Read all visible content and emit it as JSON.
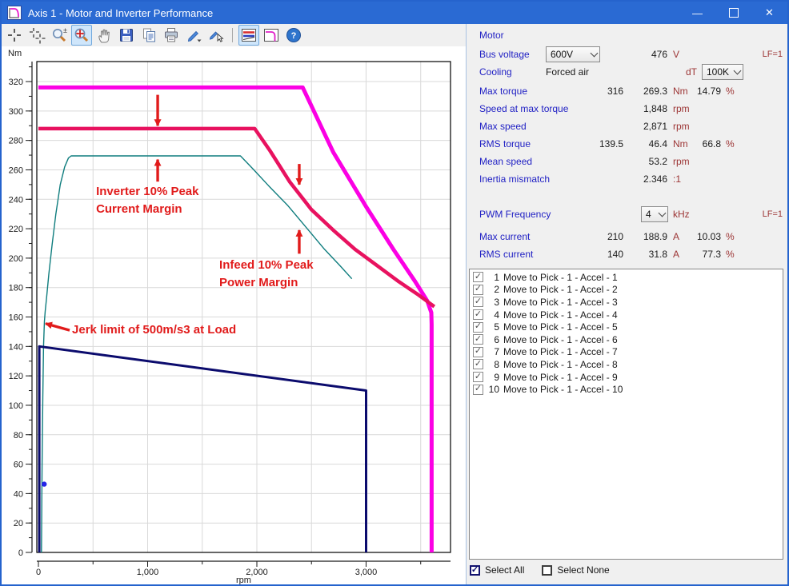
{
  "window": {
    "title": "Axis 1 - Motor and Inverter Performance"
  },
  "icons": {
    "checkmark": "✓",
    "minimize": "—",
    "close": "✕"
  },
  "toolbar": {
    "buttons": [
      {
        "icon": "crosshair",
        "active": false
      },
      {
        "icon": "crosshair-double",
        "active": false
      },
      {
        "icon": "zoom-in-out",
        "active": false
      },
      {
        "icon": "zoom-extents",
        "active": true
      },
      {
        "icon": "pan-hand",
        "active": false
      },
      {
        "icon": "save",
        "active": false
      },
      {
        "icon": "copy",
        "active": false
      },
      {
        "icon": "print",
        "active": false
      },
      {
        "icon": "pencil",
        "active": false
      },
      {
        "icon": "pencil-select",
        "active": false
      },
      {
        "icon": "chart-torque-speed",
        "active": true
      },
      {
        "icon": "chart-performance",
        "active": false
      },
      {
        "icon": "help",
        "active": false
      }
    ]
  },
  "panel": {
    "motor": {
      "header": "Motor",
      "lf_label": "LF=1",
      "bus_voltage": {
        "label": "Bus voltage",
        "combo": "600V",
        "value": "476",
        "unit": "V"
      },
      "cooling": {
        "label": "Cooling",
        "value": "Forced air",
        "dt_label": "dT",
        "dt_combo": "100K"
      },
      "max_torque": {
        "label": "Max torque",
        "rated": "316",
        "value": "269.3",
        "unit": "Nm",
        "pct": "14.79",
        "pct_unit": "%"
      },
      "speed_at_max_torque": {
        "label": "Speed at max torque",
        "value": "1,848",
        "unit": "rpm"
      },
      "max_speed": {
        "label": "Max speed",
        "value": "2,871",
        "unit": "rpm"
      },
      "rms_torque": {
        "label": "RMS torque",
        "rated": "139.5",
        "value": "46.4",
        "unit": "Nm",
        "pct": "66.8",
        "pct_unit": "%"
      },
      "mean_speed": {
        "label": "Mean speed",
        "value": "53.2",
        "unit": "rpm"
      },
      "inertia_mismatch": {
        "label": "Inertia mismatch",
        "value": "2.346",
        "unit": ":1"
      }
    },
    "inverter": {
      "lf_label": "LF=1",
      "pwm": {
        "label": "PWM Frequency",
        "combo": "4",
        "unit": "kHz"
      },
      "max_current": {
        "label": "Max current",
        "rated": "210",
        "value": "188.9",
        "unit": "A",
        "pct": "10.03",
        "pct_unit": "%"
      },
      "rms_current": {
        "label": "RMS current",
        "rated": "140",
        "value": "31.8",
        "unit": "A",
        "pct": "77.3",
        "pct_unit": "%"
      }
    }
  },
  "move_list": {
    "items": [
      {
        "num": "1",
        "label": "Move to Pick - 1 - Accel - 1",
        "checked": true
      },
      {
        "num": "2",
        "label": "Move to Pick - 1 - Accel - 2",
        "checked": true
      },
      {
        "num": "3",
        "label": "Move to Pick - 1 - Accel - 3",
        "checked": true
      },
      {
        "num": "4",
        "label": "Move to Pick - 1 - Accel - 4",
        "checked": true
      },
      {
        "num": "5",
        "label": "Move to Pick - 1 - Accel - 5",
        "checked": true
      },
      {
        "num": "6",
        "label": "Move to Pick - 1 - Accel - 6",
        "checked": true
      },
      {
        "num": "7",
        "label": "Move to Pick - 1 - Accel - 7",
        "checked": true
      },
      {
        "num": "8",
        "label": "Move to Pick - 1 - Accel - 8",
        "checked": true
      },
      {
        "num": "9",
        "label": "Move to Pick - 1 - Accel - 9",
        "checked": true
      },
      {
        "num": "10",
        "label": "Move to Pick - 1 - Accel - 10",
        "checked": true
      }
    ]
  },
  "footer": {
    "select_all": "Select All",
    "select_none": "Select None",
    "select_all_checked": true,
    "select_none_checked": false
  },
  "chart_data": {
    "type": "line",
    "title": "",
    "xlabel": "rpm",
    "ylabel": "Nm",
    "xlim": [
      0,
      3773
    ],
    "ylim": [
      0,
      333.6
    ],
    "grid": true,
    "grid_color": "#d9d9d9",
    "axis_color": "#1a1a1a",
    "x_major": [
      0,
      1000,
      2000,
      3000
    ],
    "x_labels": [
      "0",
      "1,000",
      "2,000",
      "3,000"
    ],
    "x_minor_step": 500,
    "y_major_step": 20,
    "y_minor_step": 10,
    "y_label_max": 320,
    "series": [
      {
        "name": "max-intermittent-torque",
        "color": "#fb00e4",
        "width": 5,
        "points": [
          [
            0,
            316
          ],
          [
            2420,
            316
          ],
          [
            2700,
            272
          ],
          [
            3000,
            235
          ],
          [
            3250,
            206
          ],
          [
            3450,
            184
          ],
          [
            3560,
            171
          ],
          [
            3597,
            163
          ],
          [
            3600,
            155
          ],
          [
            3600,
            0
          ]
        ]
      },
      {
        "name": "inverter-current-limited-torque",
        "color": "#e8125f",
        "width": 4.5,
        "points": [
          [
            0,
            288
          ],
          [
            1980,
            288
          ],
          [
            2120,
            273
          ],
          [
            2300,
            252
          ],
          [
            2500,
            233
          ],
          [
            2700,
            219
          ],
          [
            2900,
            206
          ],
          [
            3100,
            195
          ],
          [
            3300,
            184
          ],
          [
            3480,
            175
          ],
          [
            3590,
            169
          ],
          [
            3625,
            167
          ]
        ]
      },
      {
        "name": "infeed-power-limited-torque",
        "color": "#0f7d7e",
        "width": 1.4,
        "points": [
          [
            28,
            0
          ],
          [
            34,
            60
          ],
          [
            40,
            105
          ],
          [
            47,
            140
          ],
          [
            55,
            157
          ],
          [
            62,
            164
          ],
          [
            75,
            173
          ],
          [
            95,
            189
          ],
          [
            125,
            209
          ],
          [
            160,
            230
          ],
          [
            200,
            250
          ],
          [
            240,
            262
          ],
          [
            275,
            268
          ],
          [
            300,
            269.5
          ],
          [
            1850,
            269.5
          ],
          [
            1960,
            261
          ],
          [
            2110,
            249
          ],
          [
            2280,
            236
          ],
          [
            2450,
            221
          ],
          [
            2620,
            206
          ],
          [
            2760,
            195
          ],
          [
            2870,
            186
          ]
        ]
      },
      {
        "name": "continuous-torque-envelope",
        "color": "#0b0b6d",
        "width": 3,
        "points": [
          [
            8,
            0
          ],
          [
            8,
            140
          ],
          [
            3000,
            110
          ],
          [
            3000,
            0
          ]
        ]
      }
    ],
    "marker": {
      "name": "rms-operating-point",
      "color": "#2525e8",
      "x": 53,
      "y": 46.4,
      "r": 3.2
    },
    "annotations": {
      "color": "#e11b1b",
      "texts": [
        {
          "text": "Inverter 10% Peak",
          "at": [
            528,
            243
          ]
        },
        {
          "text": "Current Margin",
          "at": [
            528,
            231
          ]
        },
        {
          "text": "Infeed 10% Peak",
          "at": [
            1656,
            193
          ]
        },
        {
          "text": "Power Margin",
          "at": [
            1656,
            181
          ]
        },
        {
          "text": "Jerk limit of 500m/s3 at Load",
          "at": [
            308,
            149
          ]
        }
      ],
      "arrows": [
        {
          "from": [
            1092,
            311
          ],
          "to": [
            1092,
            290
          ]
        },
        {
          "from": [
            1092,
            252
          ],
          "to": [
            1092,
            267
          ]
        },
        {
          "from": [
            2388,
            264
          ],
          "to": [
            2388,
            250
          ]
        },
        {
          "from": [
            2388,
            203
          ],
          "to": [
            2388,
            219
          ]
        },
        {
          "from": [
            286,
            151
          ],
          "to": [
            66,
            155.5
          ]
        }
      ]
    }
  }
}
